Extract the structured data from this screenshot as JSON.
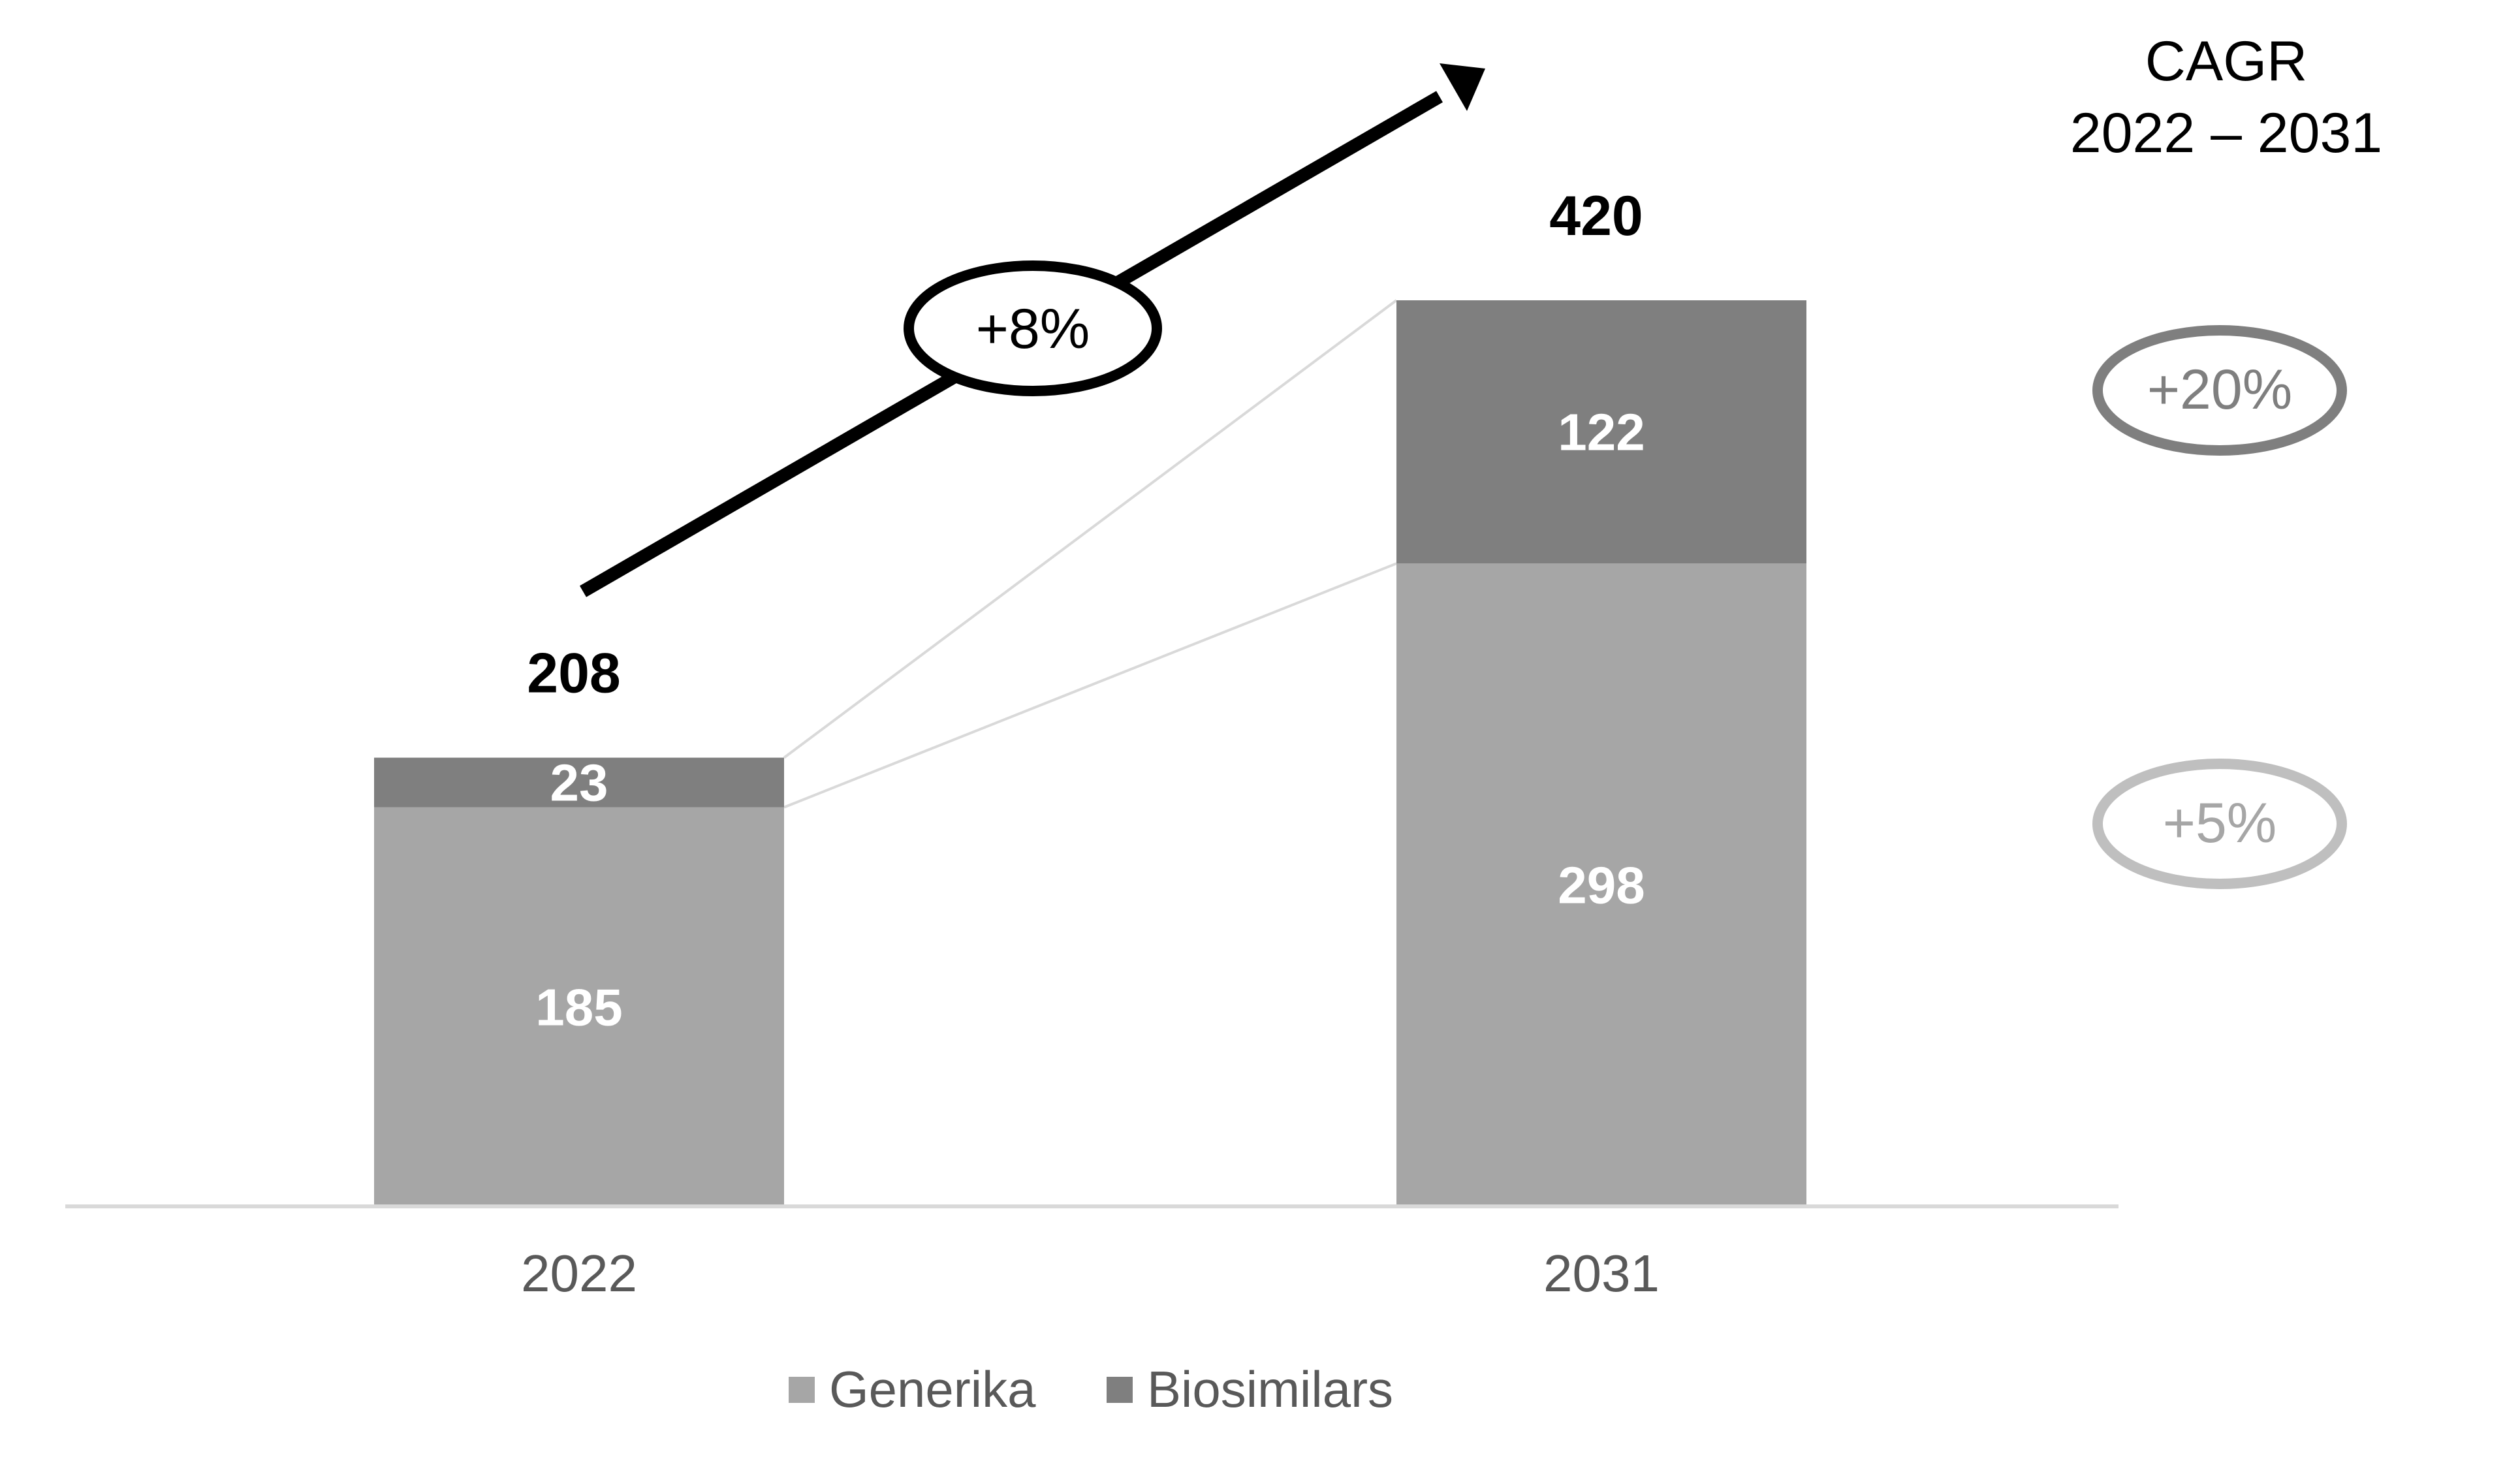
{
  "chart_data": {
    "type": "bar",
    "stacked": true,
    "categories": [
      "2022",
      "2031"
    ],
    "series": [
      {
        "name": "Generika",
        "values": [
          185,
          298
        ],
        "color": "#a6a6a6"
      },
      {
        "name": "Biosimilars",
        "values": [
          23,
          122
        ],
        "color": "#7f7f7f"
      }
    ],
    "totals": [
      208,
      420
    ],
    "ylim": [
      0,
      420
    ],
    "grid": false,
    "legend": {
      "position": "bottom"
    },
    "overall_growth": {
      "label": "+8%",
      "color": "#000000"
    },
    "cagr": {
      "title_line1": "CAGR",
      "title_line2": "2022 – 2031",
      "items": [
        {
          "series": "Biosimilars",
          "label": "+20%",
          "color": "#7f7f7f"
        },
        {
          "series": "Generika",
          "label": "+5%",
          "color": "#bfbfbf"
        }
      ]
    }
  }
}
